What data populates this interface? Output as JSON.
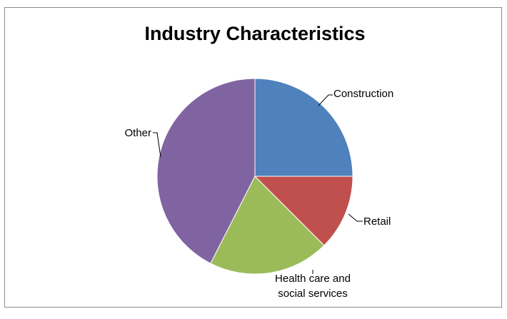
{
  "chart_data": {
    "type": "pie",
    "title": "Industry Characteristics",
    "slices": [
      {
        "label_lines": [
          "Construction"
        ],
        "value": 25,
        "color": "#4f81bd"
      },
      {
        "label_lines": [
          "Retail"
        ],
        "value": 12.5,
        "color": "#c0504d"
      },
      {
        "label_lines": [
          "Health care and",
          "social services"
        ],
        "value": 20,
        "color": "#9bbb59"
      },
      {
        "label_lines": [
          "Other"
        ],
        "value": 42.5,
        "color": "#8064a2"
      }
    ],
    "legend": "none"
  }
}
